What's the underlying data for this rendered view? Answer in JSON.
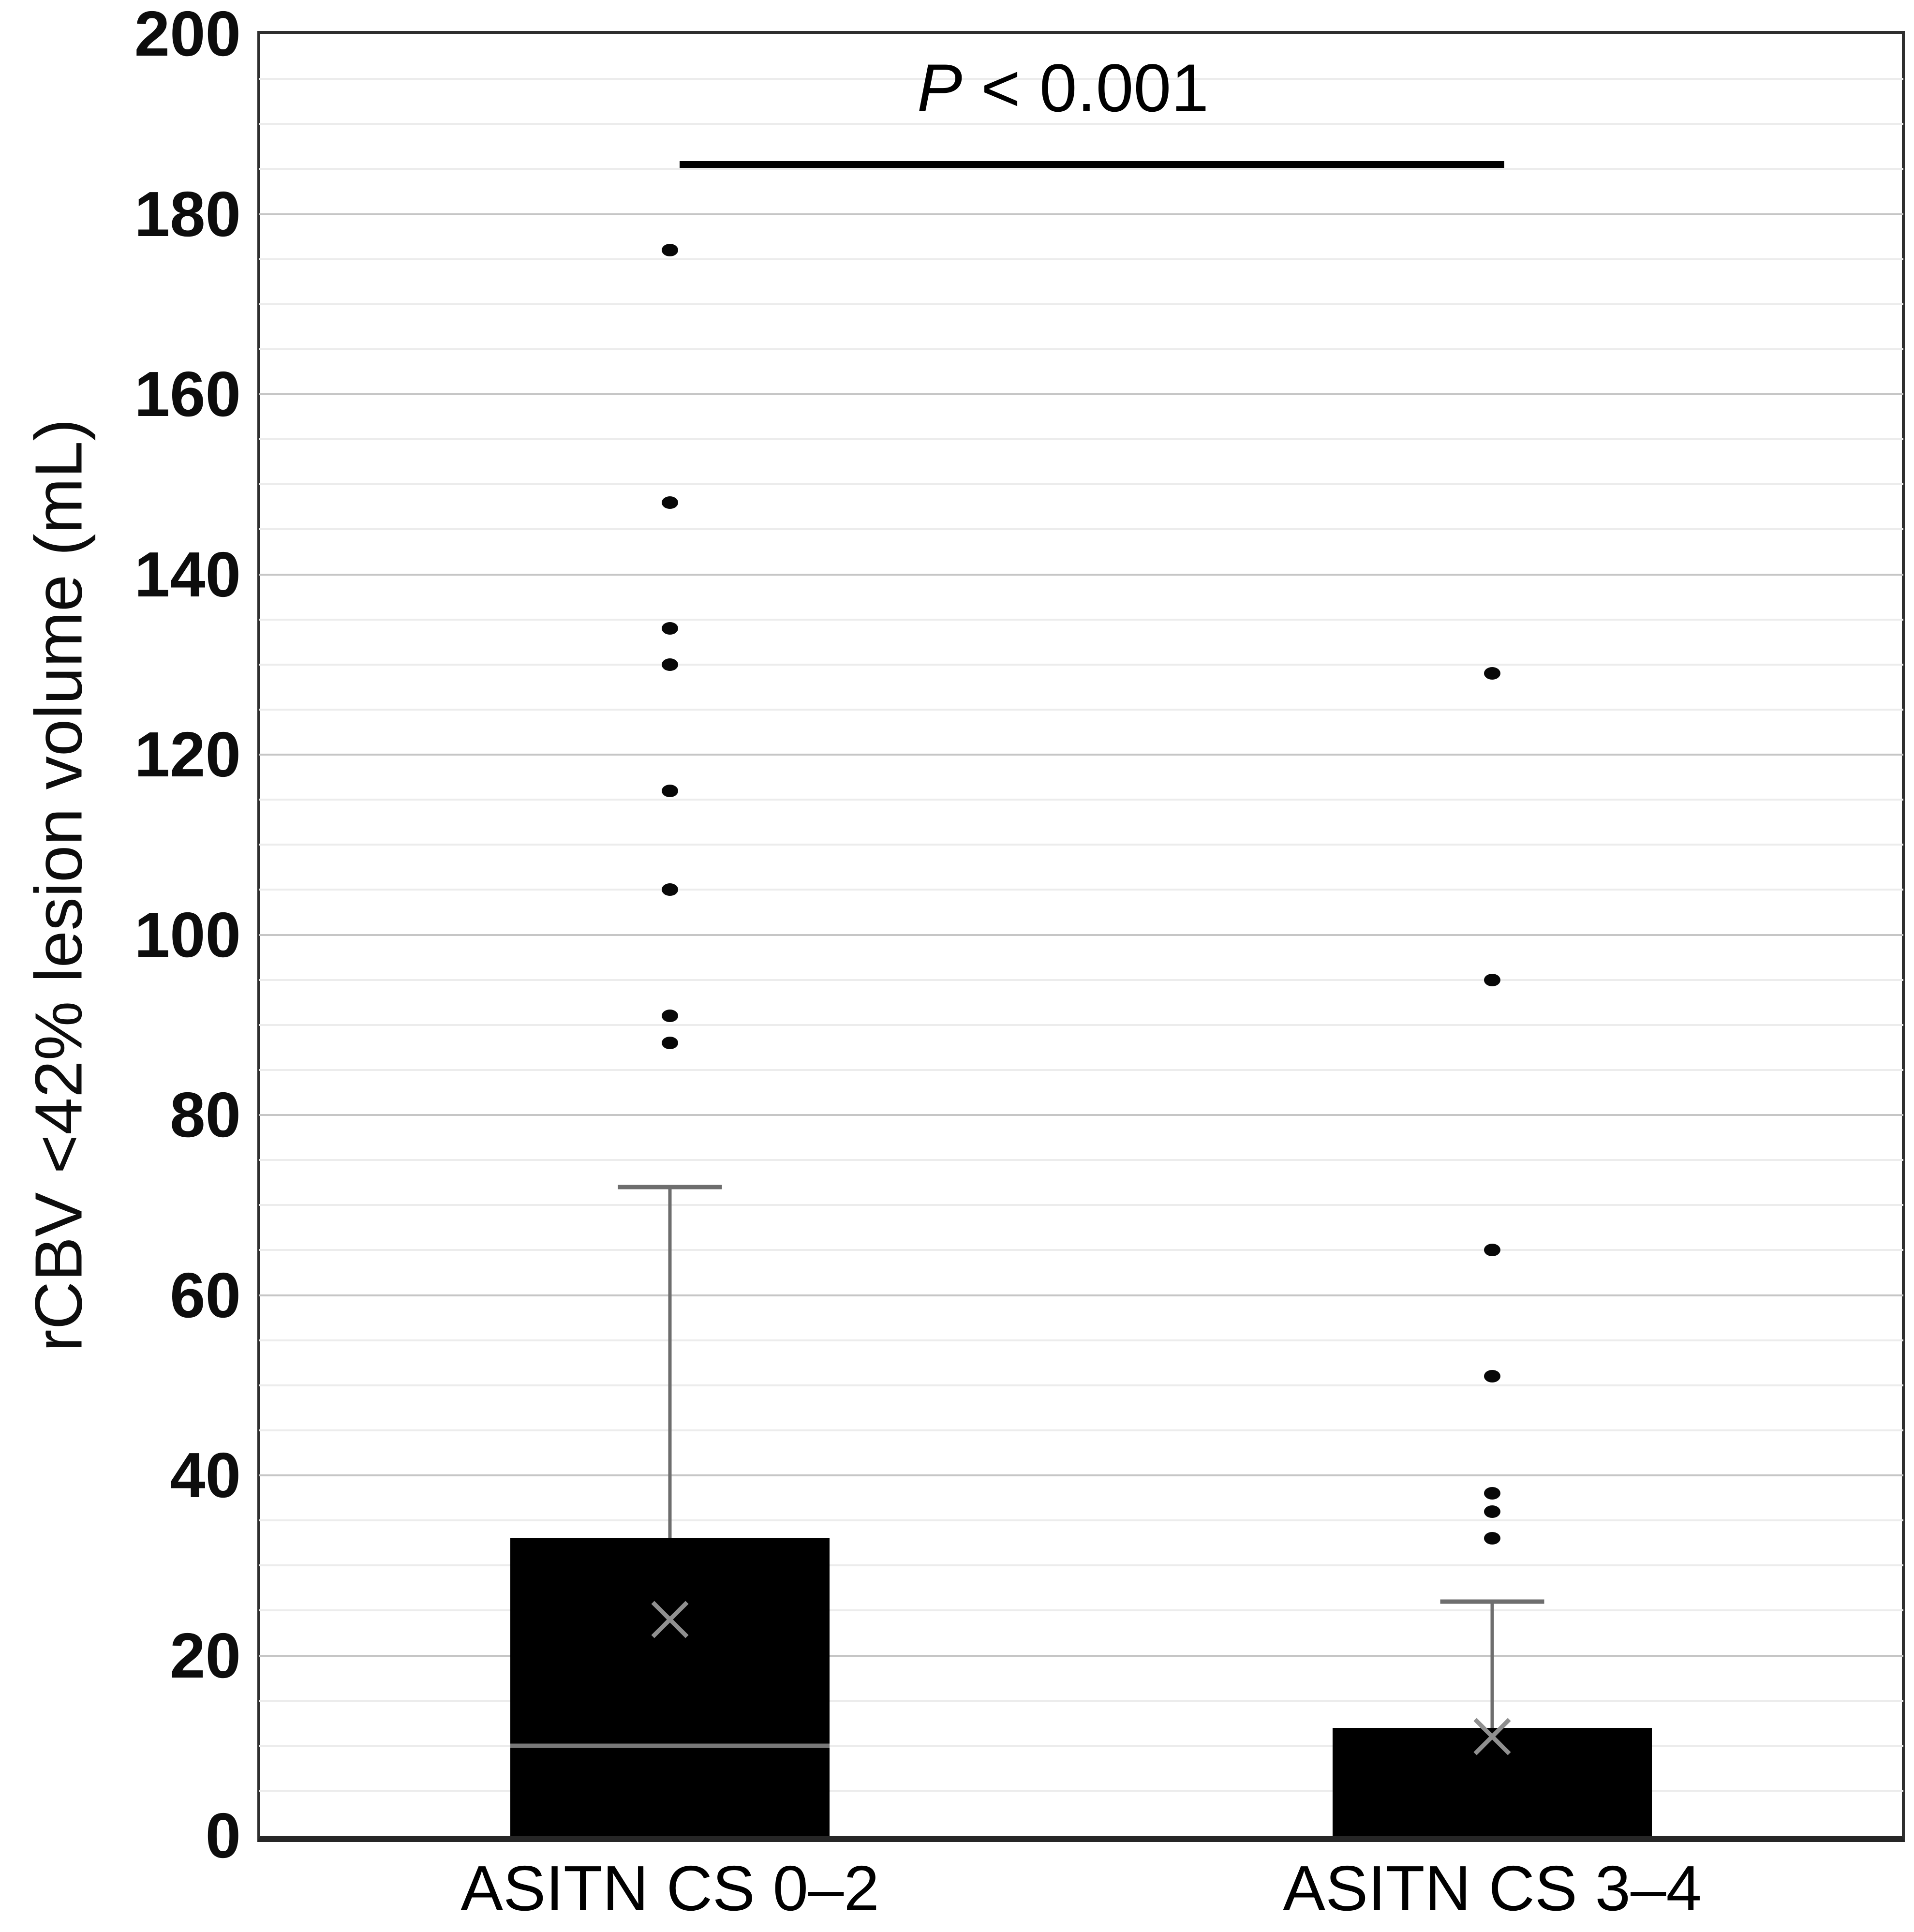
{
  "chart_data": {
    "type": "box",
    "title": "",
    "ylabel": "rCBV <42% lesion volume (mL)",
    "xlabel": "",
    "ylim": [
      0,
      200
    ],
    "y_major_step": 20,
    "y_minor_step": 5,
    "y_tick_labels": [
      "0",
      "20",
      "40",
      "60",
      "80",
      "100",
      "120",
      "140",
      "160",
      "180",
      "200"
    ],
    "grid": "horizontal-only",
    "legend": "none",
    "categories": [
      "ASITN CS 0–2",
      "ASITN CS 3–4"
    ],
    "series": [
      {
        "name": "ASITN CS 0–2",
        "q1": 0,
        "median": 10,
        "q3": 33,
        "mean": 24,
        "whisker_low": null,
        "whisker_high": 72,
        "outliers": [
          88,
          91,
          105,
          116,
          130,
          134,
          148,
          176
        ]
      },
      {
        "name": "ASITN CS 3–4",
        "q1": 0,
        "median": null,
        "q3": 12,
        "mean": 11,
        "whisker_low": null,
        "whisker_high": 26,
        "outliers": [
          33,
          36,
          38,
          51,
          65,
          95,
          129
        ]
      }
    ],
    "annotation": {
      "text": "P < 0.001",
      "text_italic_part": "P",
      "text_rest_part": " < 0.001",
      "bar_y_value": 185.5,
      "text_y_value": 194
    }
  }
}
